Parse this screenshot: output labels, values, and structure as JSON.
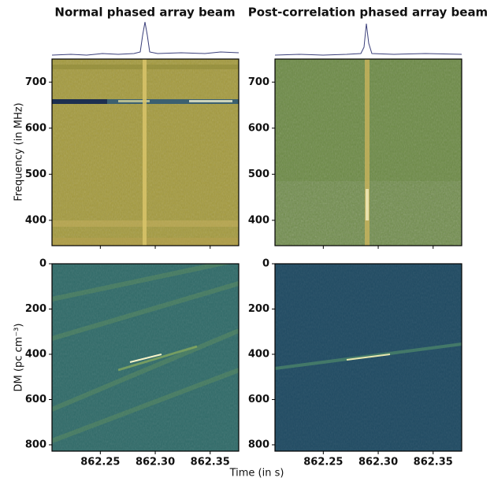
{
  "chart_data": [
    {
      "type": "image",
      "title": "Normal phased array beam",
      "ylabel": "Frequency (in MHz)",
      "xlim": [
        862.206,
        862.376
      ],
      "ylim": [
        345,
        750
      ],
      "yticks": [
        400,
        500,
        600,
        700
      ]
    },
    {
      "type": "image",
      "title": "Post-correlation phased array beam",
      "xlim": [
        862.206,
        862.376
      ],
      "ylim": [
        345,
        750
      ],
      "yticks": [
        400,
        500,
        600,
        700
      ]
    },
    {
      "type": "image",
      "ylabel": "DM (pc cm⁻³)",
      "y_inverted": true,
      "xlim": [
        862.206,
        862.376
      ],
      "ylim": [
        0,
        828
      ],
      "yticks": [
        0,
        200,
        400,
        600,
        800
      ],
      "xticks": [
        862.25,
        {
          "value": 862.3,
          "label": "862.30"
        },
        862.35
      ]
    },
    {
      "type": "image",
      "y_inverted": true,
      "xlim": [
        862.206,
        862.376
      ],
      "ylim": [
        0,
        828
      ],
      "yticks": [
        0,
        200,
        400,
        600,
        800
      ],
      "xticks": [
        862.25,
        {
          "value": 862.3,
          "label": "862.30"
        },
        862.35
      ]
    }
  ],
  "figure": {
    "xlabel": "Time (in s)"
  }
}
